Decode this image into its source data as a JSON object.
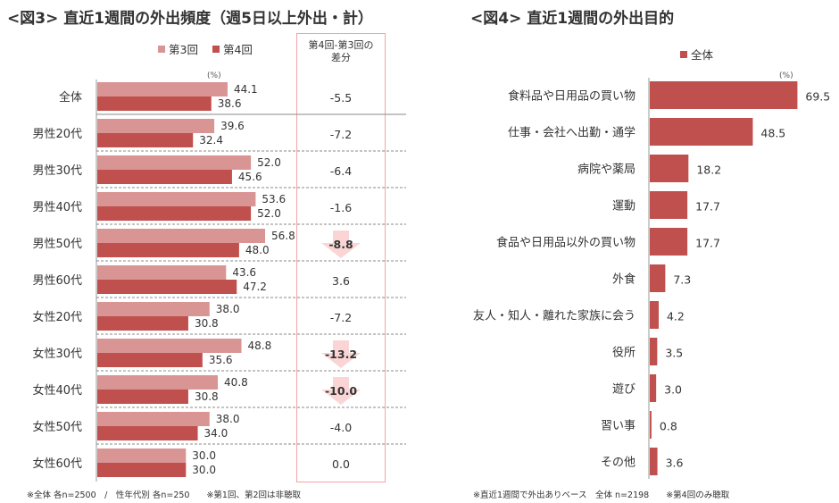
{
  "chart_data": [
    {
      "type": "bar",
      "orientation": "horizontal",
      "title": "<図3> 直近1週間の外出頻度（週5日以上外出・計）",
      "unit_label": "(%)",
      "legend": [
        "第3回",
        "第4回"
      ],
      "legend_placement": "top",
      "categories": [
        "全体",
        "男性20代",
        "男性30代",
        "男性40代",
        "男性50代",
        "男性60代",
        "女性20代",
        "女性30代",
        "女性40代",
        "女性50代",
        "女性60代"
      ],
      "series": [
        {
          "name": "第3回",
          "color": "#d99594",
          "values": [
            44.1,
            39.6,
            52.0,
            53.6,
            56.8,
            43.6,
            38.0,
            48.8,
            40.8,
            38.0,
            30.0
          ]
        },
        {
          "name": "第4回",
          "color": "#c0504d",
          "values": [
            38.6,
            32.4,
            45.6,
            52.0,
            48.0,
            47.2,
            30.8,
            35.6,
            30.8,
            34.0,
            30.0
          ]
        }
      ],
      "diff_header": [
        "第4回-第3回の",
        "差分"
      ],
      "diff": [
        "-5.5",
        "-7.2",
        "-6.4",
        "-1.6",
        "-8.8",
        "3.6",
        "-7.2",
        "-13.2",
        "-10.0",
        "-4.0",
        "0.0"
      ],
      "diff_highlight": [
        false,
        false,
        false,
        false,
        true,
        false,
        false,
        true,
        true,
        false,
        false
      ],
      "xlim": [
        0,
        60
      ],
      "grid": false,
      "footnote": "※全体 各n=2500　/　性年代別 各n=250　　※第1回、第2回は非聴取"
    },
    {
      "type": "bar",
      "orientation": "horizontal",
      "title": "<図4> 直近1週間の外出目的",
      "unit_label": "(%)",
      "legend": [
        "全体"
      ],
      "legend_placement": "top",
      "categories": [
        "食料品や日用品の買い物",
        "仕事・会社へ出勤・通学",
        "病院や薬局",
        "運動",
        "食品や日用品以外の買い物",
        "外食",
        "友人・知人・離れた家族に会う",
        "役所",
        "遊び",
        "習い事",
        "その他"
      ],
      "series": [
        {
          "name": "全体",
          "color": "#c0504d",
          "values": [
            69.5,
            48.5,
            18.2,
            17.7,
            17.7,
            7.3,
            4.2,
            3.5,
            3.0,
            0.8,
            3.6
          ]
        }
      ],
      "xlim": [
        0,
        80
      ],
      "grid": false,
      "footnote": "※直近1週間で外出ありベース　全体 n=2198　　※第4回のみ聴取"
    }
  ]
}
